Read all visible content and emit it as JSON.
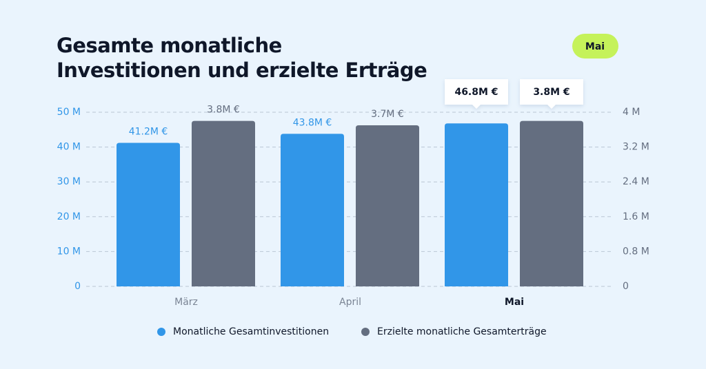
{
  "chart_data": {
    "type": "bar",
    "title": "Gesamte monatliche Investitionen und erzielte Erträge",
    "highlight": "Mai",
    "categories": [
      "März",
      "April",
      "Mai"
    ],
    "series": [
      {
        "name": "Monatliche Gesamtinvestitionen",
        "color": "#3196e8",
        "values": [
          41.2,
          43.8,
          46.8
        ],
        "value_labels": [
          "41.2M €",
          "43.8M €",
          "46.8M €"
        ]
      },
      {
        "name": "Erzielte monatliche Gesamterträge",
        "color": "#646e80",
        "axis": "y2",
        "values": [
          3.8,
          3.7,
          3.8
        ],
        "value_labels": [
          "3.8M €",
          "3.7M €",
          "3.8M €"
        ]
      }
    ],
    "ylim": [
      0,
      50
    ],
    "yticks": [
      0,
      {
        "value": 10,
        "label": "10 M"
      },
      {
        "value": 20,
        "label": "20 M"
      },
      {
        "value": 30,
        "label": "30 M"
      },
      {
        "value": 40,
        "label": "40 M"
      },
      {
        "value": 50,
        "label": "50 M"
      }
    ],
    "y2lim": [
      0,
      4
    ],
    "y2ticks": [
      0,
      {
        "value": 0.8,
        "label": "0.8 M"
      },
      {
        "value": 1.6,
        "label": "1.6 M"
      },
      {
        "value": 2.4,
        "label": "2.4 M"
      },
      {
        "value": 3.2,
        "label": "3.2 M"
      },
      {
        "value": 4,
        "label": "4 M"
      }
    ],
    "grid": true
  }
}
